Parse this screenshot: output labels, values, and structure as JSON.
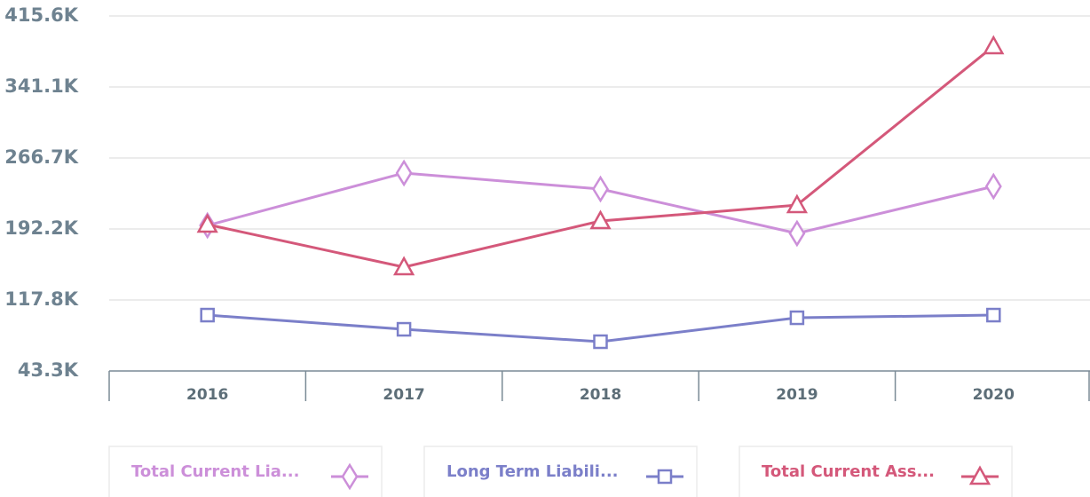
{
  "chart_data": {
    "type": "line",
    "categories": [
      "2016",
      "2017",
      "2018",
      "2019",
      "2020"
    ],
    "series": [
      {
        "name": "Total Current Lia...",
        "color": "#cc8fd9",
        "marker": "diamond",
        "values": [
          195900,
          250900,
          234100,
          187600,
          236900
        ]
      },
      {
        "name": "Long Term Liabili...",
        "color": "#7b7fc9",
        "marker": "square",
        "values": [
          101900,
          87000,
          74000,
          99100,
          101900
        ]
      },
      {
        "name": "Total Current Ass...",
        "color": "#d4587a",
        "marker": "triangle",
        "values": [
          196900,
          152200,
          200600,
          217300,
          383900
        ]
      }
    ],
    "ylim": [
      43300,
      415600
    ],
    "yticks": [
      {
        "value": 43300,
        "label": "43.3K"
      },
      {
        "value": 117800,
        "label": "117.8K"
      },
      {
        "value": 192200,
        "label": "192.2K"
      },
      {
        "value": 266700,
        "label": "266.7K"
      },
      {
        "value": 341100,
        "label": "341.1K"
      },
      {
        "value": 415600,
        "label": "415.6K"
      }
    ],
    "grid": true
  }
}
